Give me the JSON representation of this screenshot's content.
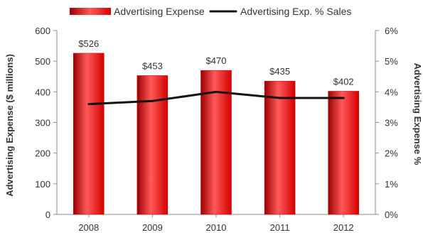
{
  "chart_data": {
    "type": "bar",
    "categories": [
      "2008",
      "2009",
      "2010",
      "2011",
      "2012"
    ],
    "series": [
      {
        "name": "Advertising Expense",
        "type": "bar",
        "axis": "left",
        "values": [
          526,
          453,
          470,
          435,
          402
        ],
        "labels": [
          "$526",
          "$453",
          "$470",
          "$435",
          "$402"
        ]
      },
      {
        "name": "Advertising Exp. % Sales",
        "type": "line",
        "axis": "right",
        "values": [
          3.6,
          3.7,
          4.0,
          3.8,
          3.8
        ]
      }
    ],
    "title": "",
    "xlabel": "",
    "ylabel": "Advertising Expense ($ millions)",
    "ylabel_right": "Advertising Expense %",
    "ylim": [
      0,
      600
    ],
    "yticks": [
      0,
      100,
      200,
      300,
      400,
      500,
      600
    ],
    "ylim_right": [
      0,
      6
    ],
    "yticks_right": [
      "0%",
      "1%",
      "2%",
      "3%",
      "4%",
      "5%",
      "6%"
    ],
    "legend": {
      "position": "top-center",
      "items": [
        {
          "label": "Advertising Expense",
          "color": "#d40000",
          "kind": "bar"
        },
        {
          "label": "Advertising Exp. % Sales",
          "color": "#000000",
          "kind": "line"
        }
      ]
    },
    "grid": false,
    "colors": {
      "bar": "#d40000",
      "bar_light": "#ff5a5a",
      "bar_dark": "#9c0000",
      "line": "#111111",
      "axis": "#8c8c8c",
      "text": "#333333"
    }
  }
}
